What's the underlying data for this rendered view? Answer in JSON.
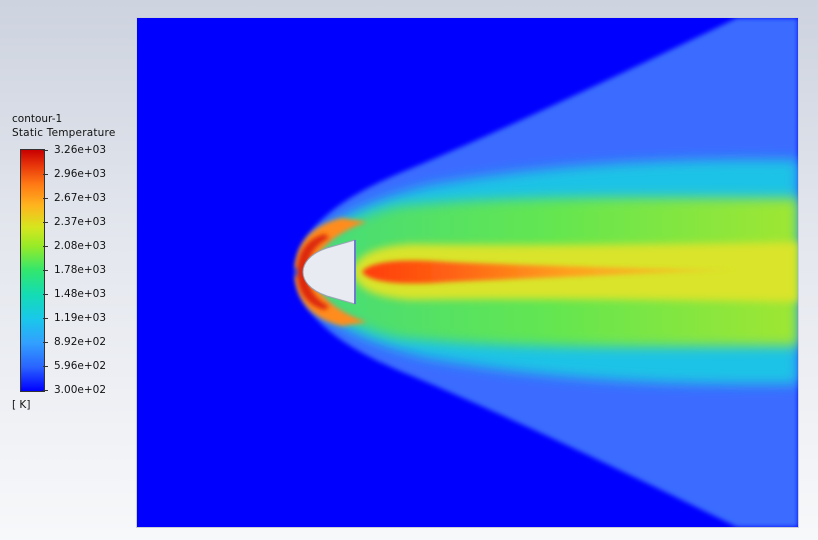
{
  "legend": {
    "title": "contour-1",
    "quantity": "Static Temperature",
    "unit": "[ K]",
    "ticks": [
      "3.26e+03",
      "2.96e+03",
      "2.67e+03",
      "2.37e+03",
      "2.08e+03",
      "1.78e+03",
      "1.48e+03",
      "1.19e+03",
      "8.92e+02",
      "5.96e+02",
      "3.00e+02"
    ],
    "colormap_colors": [
      "#0000ff",
      "#2a64ff",
      "#32a0ff",
      "#19c8ea",
      "#14dcb4",
      "#32e66e",
      "#96eb28",
      "#d6e61e",
      "#ffb41e",
      "#ff7814",
      "#e6320a",
      "#c80000"
    ]
  },
  "viewport": {
    "field": "Static Temperature",
    "background_color": "#0000ff",
    "body_color": "#e8ebf2"
  }
}
